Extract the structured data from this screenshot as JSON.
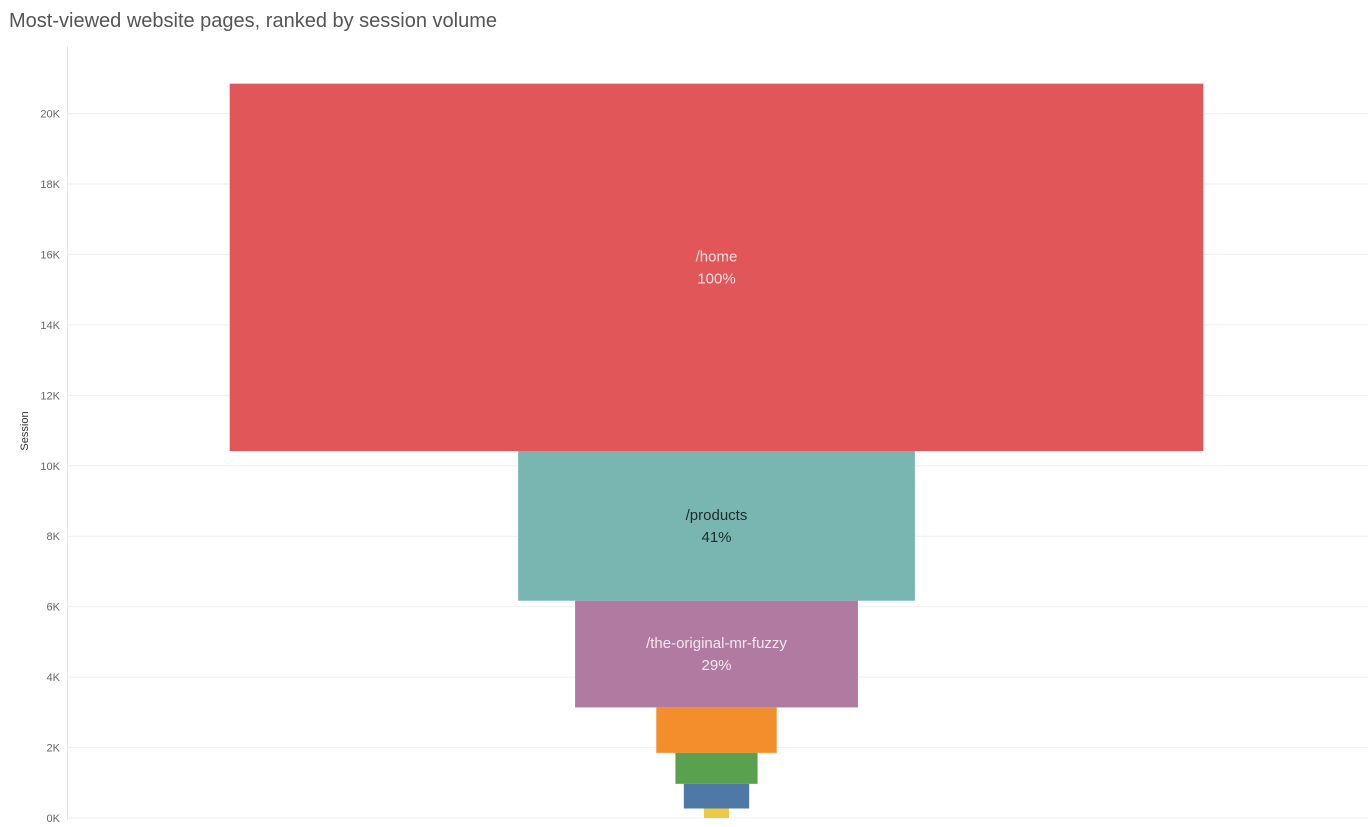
{
  "chart_data": {
    "type": "bar",
    "subtype": "funnel",
    "title": "Most-viewed website pages, ranked by session volume",
    "ylabel": "Session",
    "xlabel": "",
    "ylim": [
      0,
      21000
    ],
    "y_ticks": [
      "0K",
      "2K",
      "4K",
      "6K",
      "8K",
      "10K",
      "12K",
      "14K",
      "16K",
      "18K",
      "20K"
    ],
    "y_tick_values": [
      0,
      2000,
      4000,
      6000,
      8000,
      10000,
      12000,
      14000,
      16000,
      18000,
      20000
    ],
    "grid": true,
    "segments": [
      {
        "page": "/home",
        "pct_label": "100%",
        "sessions": 10430,
        "color": "#e15759",
        "text_color": "#f4e0e0"
      },
      {
        "page": "/products",
        "pct_label": "41%",
        "sessions": 4250,
        "color": "#79b6b1",
        "text_color": "#1f2a2a"
      },
      {
        "page": "/the-original-mr-fuzzy",
        "pct_label": "29%",
        "sessions": 3030,
        "color": "#b07aa1",
        "text_color": "#f3e8f0"
      },
      {
        "page": "",
        "pct_label": "",
        "sessions": 1290,
        "color": "#f28e2b",
        "text_color": "#ffffff"
      },
      {
        "page": "",
        "pct_label": "",
        "sessions": 880,
        "color": "#59a14f",
        "text_color": "#ffffff"
      },
      {
        "page": "",
        "pct_label": "",
        "sessions": 700,
        "color": "#4e79a7",
        "text_color": "#ffffff"
      },
      {
        "page": "",
        "pct_label": "",
        "sessions": 270,
        "color": "#edc948",
        "text_color": "#ffffff"
      }
    ]
  }
}
